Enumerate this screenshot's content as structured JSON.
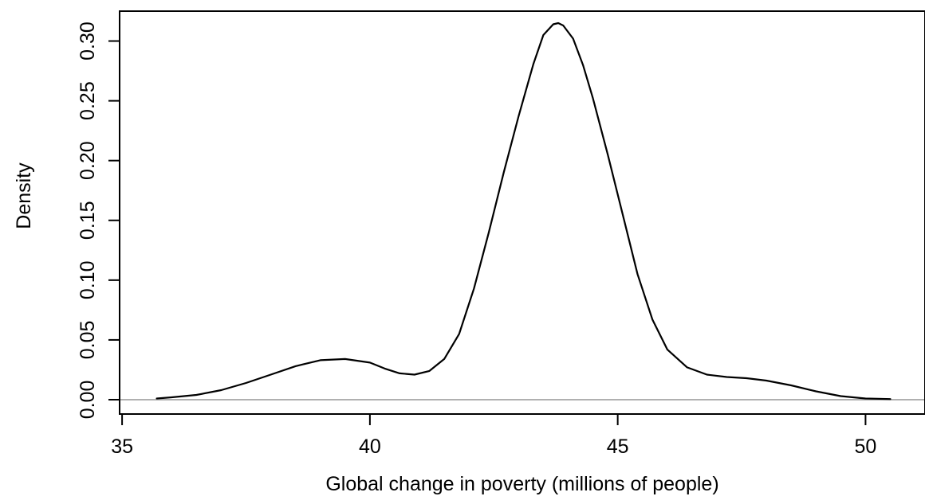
{
  "chart_data": {
    "type": "line",
    "title": "",
    "xlabel": "Global change in poverty (millions of people)",
    "ylabel": "Density",
    "xlim": [
      34.95,
      51.2
    ],
    "ylim": [
      -0.012,
      0.325
    ],
    "xticks": [
      35,
      40,
      45,
      50
    ],
    "yticks": [
      0.0,
      0.05,
      0.1,
      0.15,
      0.2,
      0.25,
      0.3
    ],
    "ytick_labels": [
      "0.00",
      "0.05",
      "0.10",
      "0.15",
      "0.20",
      "0.25",
      "0.30"
    ],
    "grid": false,
    "legend": "none",
    "baseline": {
      "y": 0,
      "color": "#b0b0b0"
    },
    "colors": {
      "line": "#000000"
    },
    "series": [
      {
        "x": [
          35.7,
          36.0,
          36.5,
          37.0,
          37.5,
          38.0,
          38.5,
          39.0,
          39.5,
          40.0,
          40.3,
          40.6,
          40.9,
          41.2,
          41.5,
          41.8,
          42.1,
          42.4,
          42.7,
          43.0,
          43.3,
          43.5,
          43.7,
          43.8,
          43.9,
          44.1,
          44.3,
          44.5,
          44.8,
          45.1,
          45.4,
          45.7,
          46.0,
          46.4,
          46.8,
          47.2,
          47.6,
          48.0,
          48.5,
          49.0,
          49.5,
          50.0,
          50.5
        ],
        "y": [
          0.001,
          0.002,
          0.004,
          0.008,
          0.014,
          0.021,
          0.028,
          0.033,
          0.034,
          0.031,
          0.026,
          0.022,
          0.021,
          0.024,
          0.034,
          0.055,
          0.093,
          0.14,
          0.19,
          0.237,
          0.281,
          0.305,
          0.314,
          0.315,
          0.313,
          0.302,
          0.28,
          0.252,
          0.205,
          0.155,
          0.105,
          0.067,
          0.042,
          0.027,
          0.021,
          0.019,
          0.018,
          0.016,
          0.012,
          0.007,
          0.003,
          0.001,
          0.0005
        ]
      }
    ]
  }
}
